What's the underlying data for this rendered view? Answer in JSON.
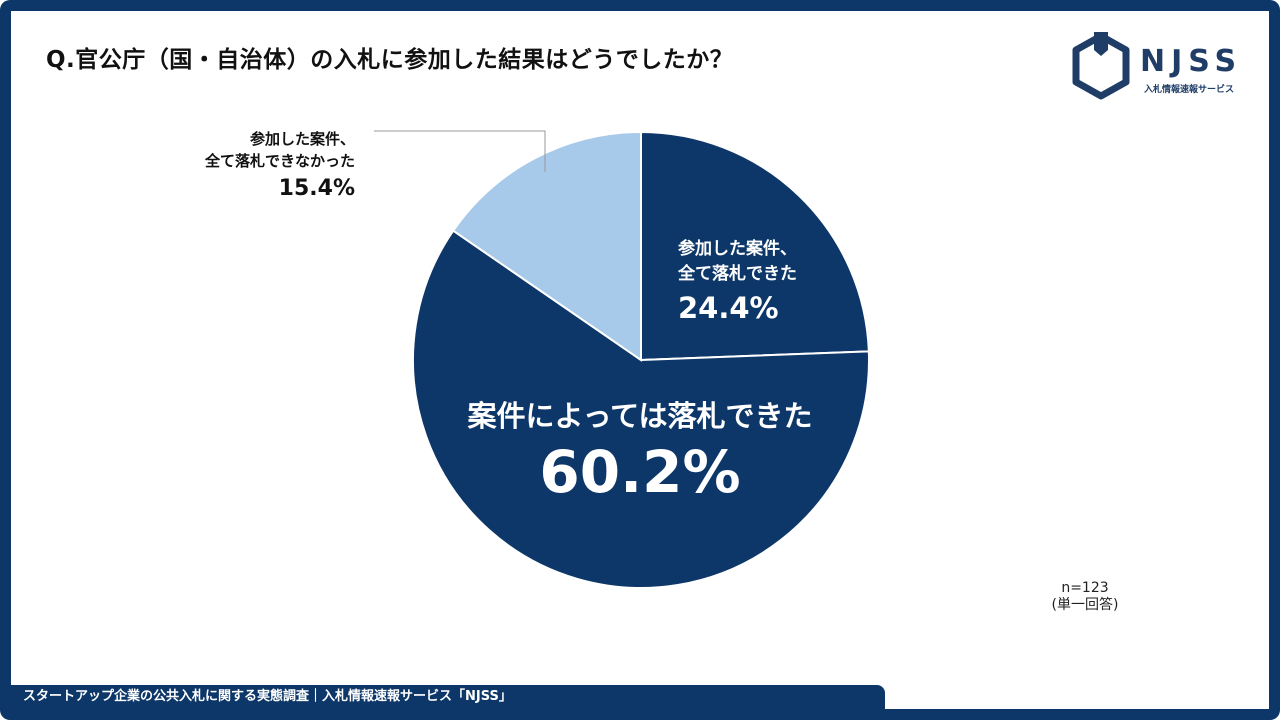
{
  "title": "Q.官公庁（国・自治体）の入札に参加した結果はどうでしたか？",
  "logo": {
    "name": "NJSS",
    "subtitle": "入札情報速報サービス",
    "color": "#1f3d66"
  },
  "chart_data": {
    "type": "pie",
    "start_angle_deg": 0,
    "direction": "clockwise",
    "slices": [
      {
        "label_lines": [
          "参加した案件、",
          "全て落札できた"
        ],
        "value": 24.4,
        "value_label": "24.4%",
        "color": "#0d3768"
      },
      {
        "label_lines": [
          "案件によっては落札できた"
        ],
        "value": 60.2,
        "value_label": "60.2%",
        "color": "#0d3768"
      },
      {
        "label_lines": [
          "参加した案件、",
          "全て落札できなかった"
        ],
        "value": 15.4,
        "value_label": "15.4%",
        "color": "#a7c9ea"
      }
    ]
  },
  "note": {
    "n": "n=123",
    "type": "(単一回答)"
  },
  "footer": "スタートアップ企業の公共入札に関する実態調査｜入札情報速報サービス「NJSS」",
  "colors": {
    "frame": "#0d3768",
    "dark_slice": "#0d3768",
    "light_slice": "#a7c9ea"
  }
}
